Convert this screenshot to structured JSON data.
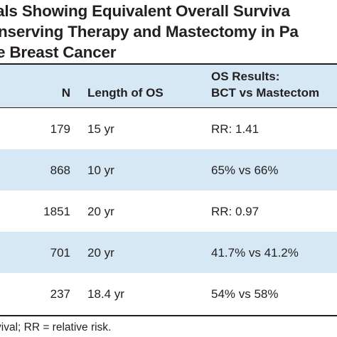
{
  "title": {
    "line1": "als Showing Equivalent Overall Surviva",
    "line2": "nserving Therapy and Mastectomy in Pa",
    "line3": "e Breast Cancer"
  },
  "table": {
    "columns": {
      "n": "N",
      "length": "Length of OS",
      "os_line1": "OS Results:",
      "os_line2": "BCT vs Mastectom"
    },
    "rows": [
      {
        "n": "179",
        "length": "15 yr",
        "os": "RR: 1.41"
      },
      {
        "n": "868",
        "length": "10 yr",
        "os": "65% vs 66%"
      },
      {
        "n": "1851",
        "length": "20 yr",
        "os": "RR: 0.97"
      },
      {
        "n": "701",
        "length": "20 yr",
        "os": "41.7% vs 41.2%"
      },
      {
        "n": "237",
        "length": "18.4 yr",
        "os": "54% vs 58%"
      }
    ]
  },
  "footnote": "vival; RR = relative risk.",
  "colors": {
    "shade": "#d6e8f4",
    "text": "#231f20"
  }
}
